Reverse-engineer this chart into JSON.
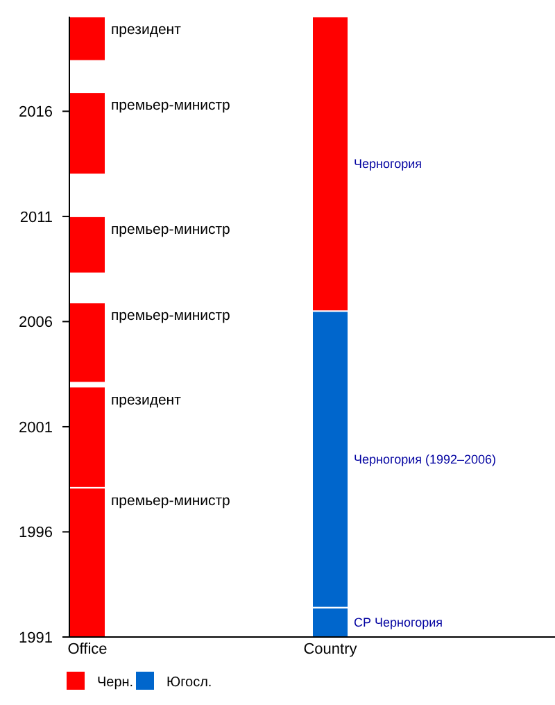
{
  "chart_data": {
    "type": "bar",
    "categories": [
      "Office",
      "Country"
    ],
    "ylim": [
      1991,
      2020.5
    ],
    "yticks": [
      1991,
      1996,
      2001,
      2006,
      2011,
      2016
    ],
    "legend": "bottom left",
    "series": [
      {
        "name": "Черн.",
        "color": "#ff0000",
        "values": [
          7.1,
          null
        ],
        "base": [
          1991,
          null
        ]
      },
      {
        "color": "#ff0000",
        "values": [
          4.8,
          null
        ],
        "base": [
          1998.1,
          null
        ]
      },
      {
        "color": "#ff0000",
        "values": [
          3.8,
          null
        ],
        "base": [
          2003.1,
          null
        ]
      },
      {
        "color": "#ff0000",
        "values": [
          2.7,
          null
        ],
        "base": [
          2008.3,
          null
        ]
      },
      {
        "color": "#ff0000",
        "values": [
          3.9,
          null
        ],
        "base": [
          2013,
          null
        ]
      },
      {
        "color": "#ff0000",
        "values": [
          2.1,
          null
        ],
        "base": [
          2018.4,
          null
        ]
      },
      {
        "name": "Югосл.",
        "color": "#0066cc",
        "values": [
          null,
          1.4
        ],
        "base": [
          null,
          1991
        ]
      },
      {
        "color": "#0066cc",
        "values": [
          null,
          14.1
        ],
        "base": [
          null,
          1992.4
        ]
      },
      {
        "color": "#ff0000",
        "values": [
          null,
          14
        ],
        "base": [
          null,
          2006.5
        ]
      }
    ],
    "annotations": [
      "премьер-министр",
      "президент",
      "премьер-министр",
      "премьер-министр",
      "премьер-министр",
      "президент",
      "СР Черногория",
      "Черногория (1992–2006)",
      "Черногория"
    ]
  }
}
